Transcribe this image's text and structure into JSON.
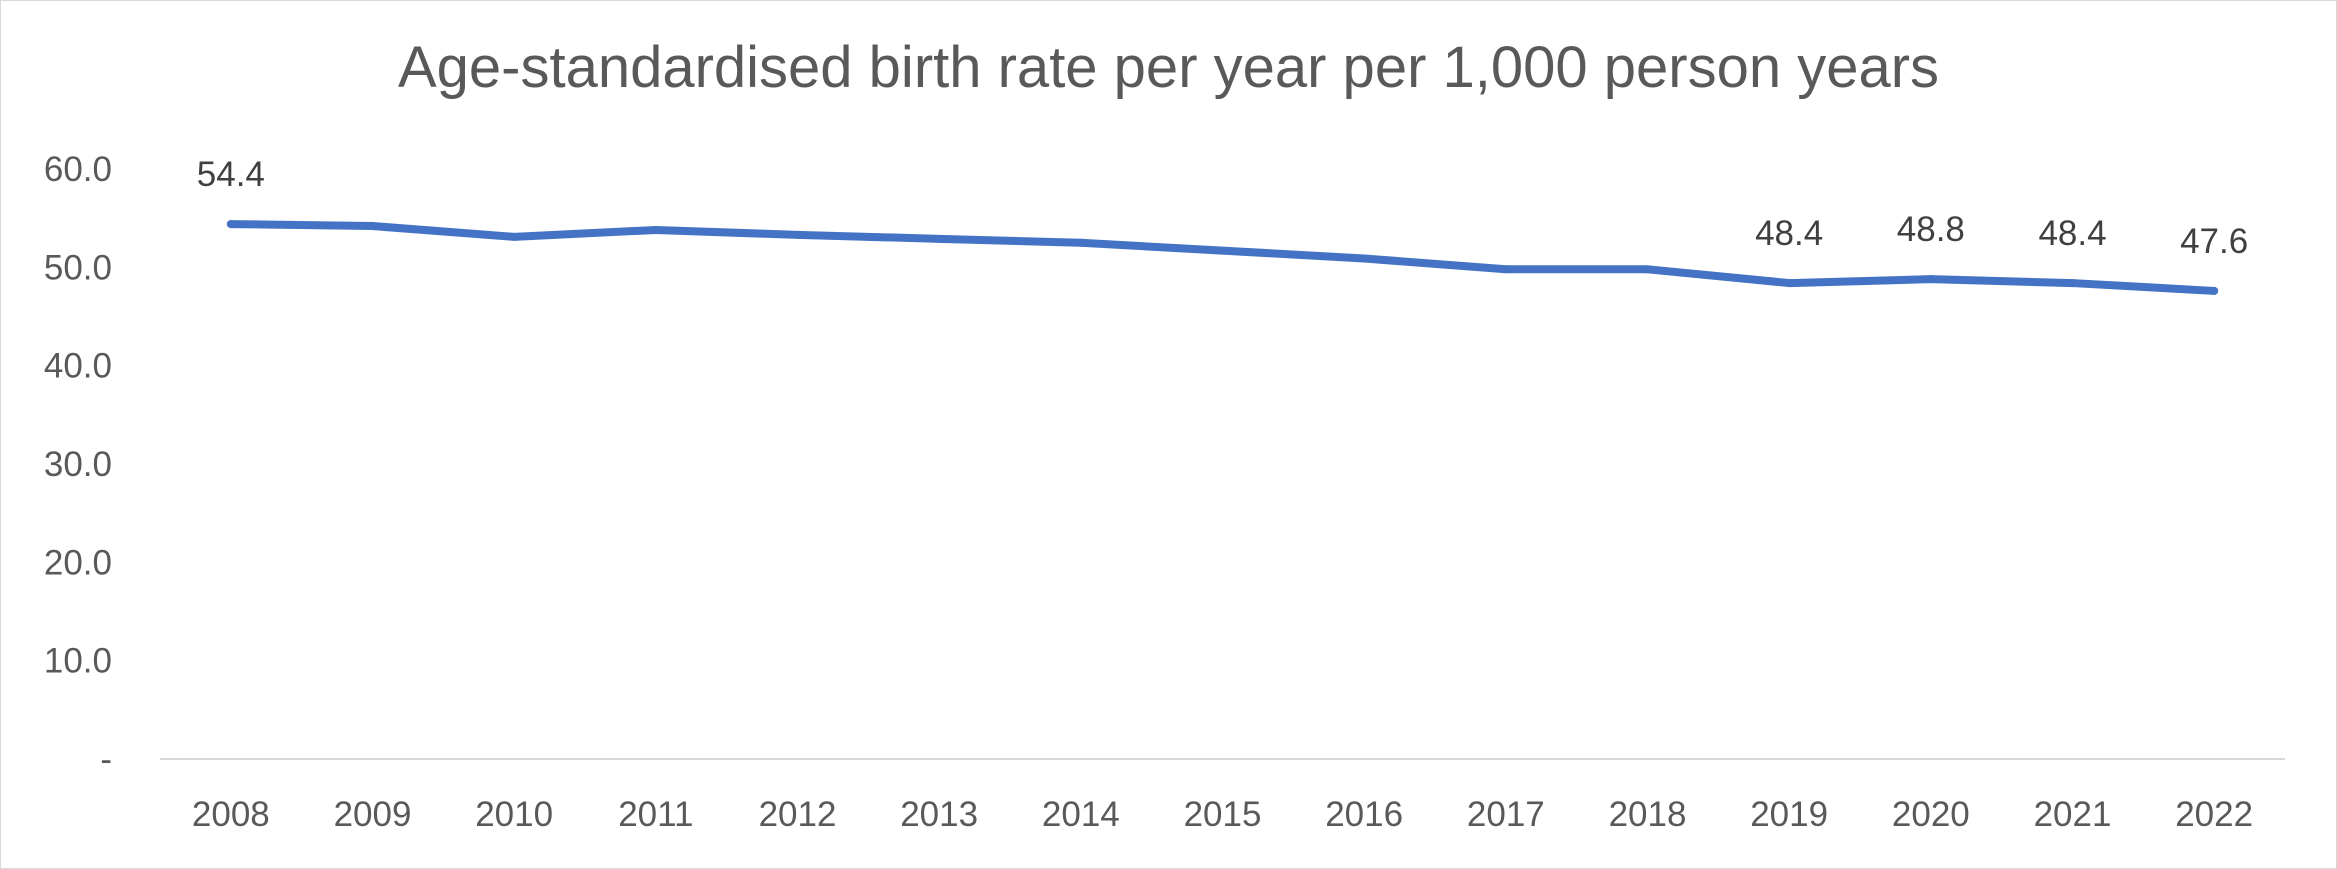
{
  "chart_data": {
    "type": "line",
    "title": "Age-standardised birth rate per year per 1,000 person years",
    "x": [
      "2008",
      "2009",
      "2010",
      "2011",
      "2012",
      "2013",
      "2014",
      "2015",
      "2016",
      "2017",
      "2018",
      "2019",
      "2020",
      "2021",
      "2022"
    ],
    "series": [
      {
        "values": [
          54.4,
          54.2,
          53.1,
          53.8,
          53.3,
          52.9,
          52.5,
          51.7,
          50.9,
          49.8,
          49.8,
          48.4,
          48.8,
          48.4,
          47.6
        ],
        "color": "#4472C4"
      }
    ],
    "data_labels": [
      {
        "x": "2008",
        "text": "54.4"
      },
      {
        "x": "2019",
        "text": "48.4"
      },
      {
        "x": "2020",
        "text": "48.8"
      },
      {
        "x": "2021",
        "text": "48.4"
      },
      {
        "x": "2022",
        "text": "47.6"
      }
    ],
    "y_ticks": [
      {
        "value": 0,
        "label": "-"
      },
      {
        "value": 10,
        "label": "10.0"
      },
      {
        "value": 20,
        "label": "20.0"
      },
      {
        "value": 30,
        "label": "30.0"
      },
      {
        "value": 40,
        "label": "40.0"
      },
      {
        "value": 50,
        "label": "50.0"
      },
      {
        "value": 60,
        "label": "60.0"
      }
    ],
    "ylim": [
      0,
      60
    ],
    "grid": false,
    "legend": "none",
    "axis_color": "#d9d9d9"
  }
}
